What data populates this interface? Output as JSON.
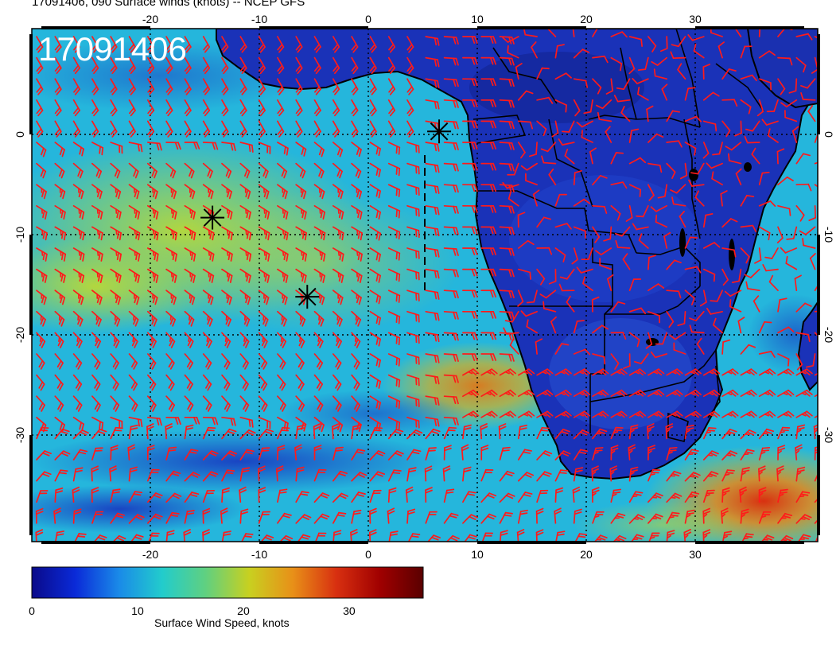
{
  "title": "17091406, 090 Surface winds (knots) -- NCEP GFS",
  "stamp": "17091406",
  "map": {
    "lon_range": [
      -30,
      41
    ],
    "lat_range": [
      -41,
      10
    ],
    "lon_ticks": [
      "-20",
      "-10",
      "0",
      "10",
      "20",
      "30"
    ],
    "lat_ticks": [
      "0",
      "-10",
      "-20",
      "-30"
    ],
    "grid": "dotted",
    "markers": [
      {
        "name": "star-1",
        "lon": 6.5,
        "lat": 0.3
      },
      {
        "name": "star-2",
        "lon": -14.3,
        "lat": -8.3
      },
      {
        "name": "star-3",
        "lon": -5.6,
        "lat": -16.2
      }
    ],
    "barb_color": "#ff1a1a",
    "coast_color": "#000000"
  },
  "colorbar": {
    "label": "Surface Wind Speed, knots",
    "ticks": [
      "0",
      "10",
      "20",
      "30"
    ],
    "range": [
      0,
      37
    ],
    "colors": [
      "#0a0a8a",
      "#0a2ad8",
      "#1a8ae8",
      "#22cccc",
      "#60d080",
      "#c8d020",
      "#e89018",
      "#d83010",
      "#a00000",
      "#5a0000"
    ]
  }
}
